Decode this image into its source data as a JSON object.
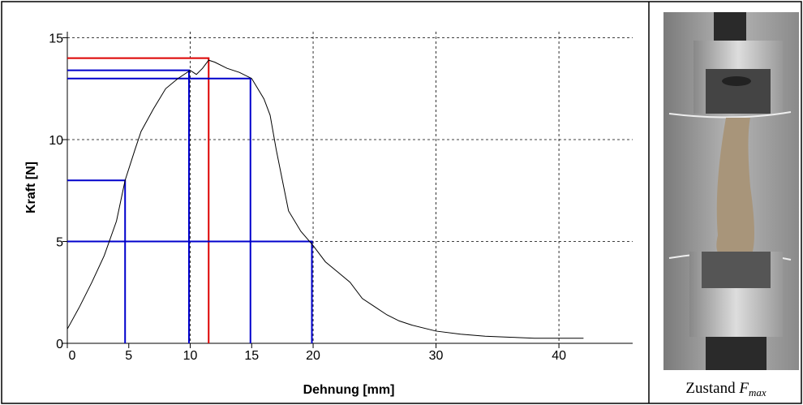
{
  "chart_data": {
    "type": "line",
    "xlabel": "Dehnung [mm]",
    "ylabel": "Kraft [N]",
    "xlim": [
      0,
      46
    ],
    "ylim": [
      0,
      15.3
    ],
    "xticks": [
      0,
      5,
      10,
      15,
      20,
      30,
      40
    ],
    "yticks": [
      0,
      5,
      10,
      15
    ],
    "xgrid": [
      10,
      20,
      30,
      40
    ],
    "ygrid": [
      5,
      10,
      15
    ],
    "curve": {
      "color": "#000000",
      "x": [
        0,
        1,
        2,
        3,
        4,
        4.7,
        5.5,
        6,
        7,
        8,
        9,
        10,
        10.5,
        11,
        11.5,
        12,
        13,
        14,
        15,
        15.5,
        16,
        16.5,
        17,
        17.5,
        18,
        19,
        20,
        21,
        22,
        23,
        24,
        25,
        26,
        27,
        28,
        30,
        32,
        34,
        36,
        38,
        40,
        42
      ],
      "values": [
        0.7,
        1.8,
        3,
        4.3,
        6,
        8,
        9.5,
        10.4,
        11.5,
        12.5,
        13,
        13.4,
        13.2,
        13.5,
        13.9,
        13.8,
        13.5,
        13.3,
        13,
        12.5,
        12,
        11.2,
        9.5,
        8,
        6.5,
        5.5,
        4.8,
        4,
        3.5,
        3,
        2.2,
        1.8,
        1.4,
        1.1,
        0.9,
        0.6,
        0.45,
        0.35,
        0.3,
        0.25,
        0.25,
        0.25
      ]
    },
    "markers": [
      {
        "x": 4.7,
        "y": 8,
        "color": "#0000cc"
      },
      {
        "x": 9.9,
        "y": 13.4,
        "color": "#0000cc"
      },
      {
        "x": 11.5,
        "y": 14,
        "color": "#dd0000"
      },
      {
        "x": 14.9,
        "y": 13,
        "color": "#0000cc"
      },
      {
        "x": 19.9,
        "y": 5,
        "color": "#0000cc"
      }
    ]
  },
  "photo": {
    "caption": "Zustand",
    "symbol": "F",
    "subscript": "max"
  }
}
